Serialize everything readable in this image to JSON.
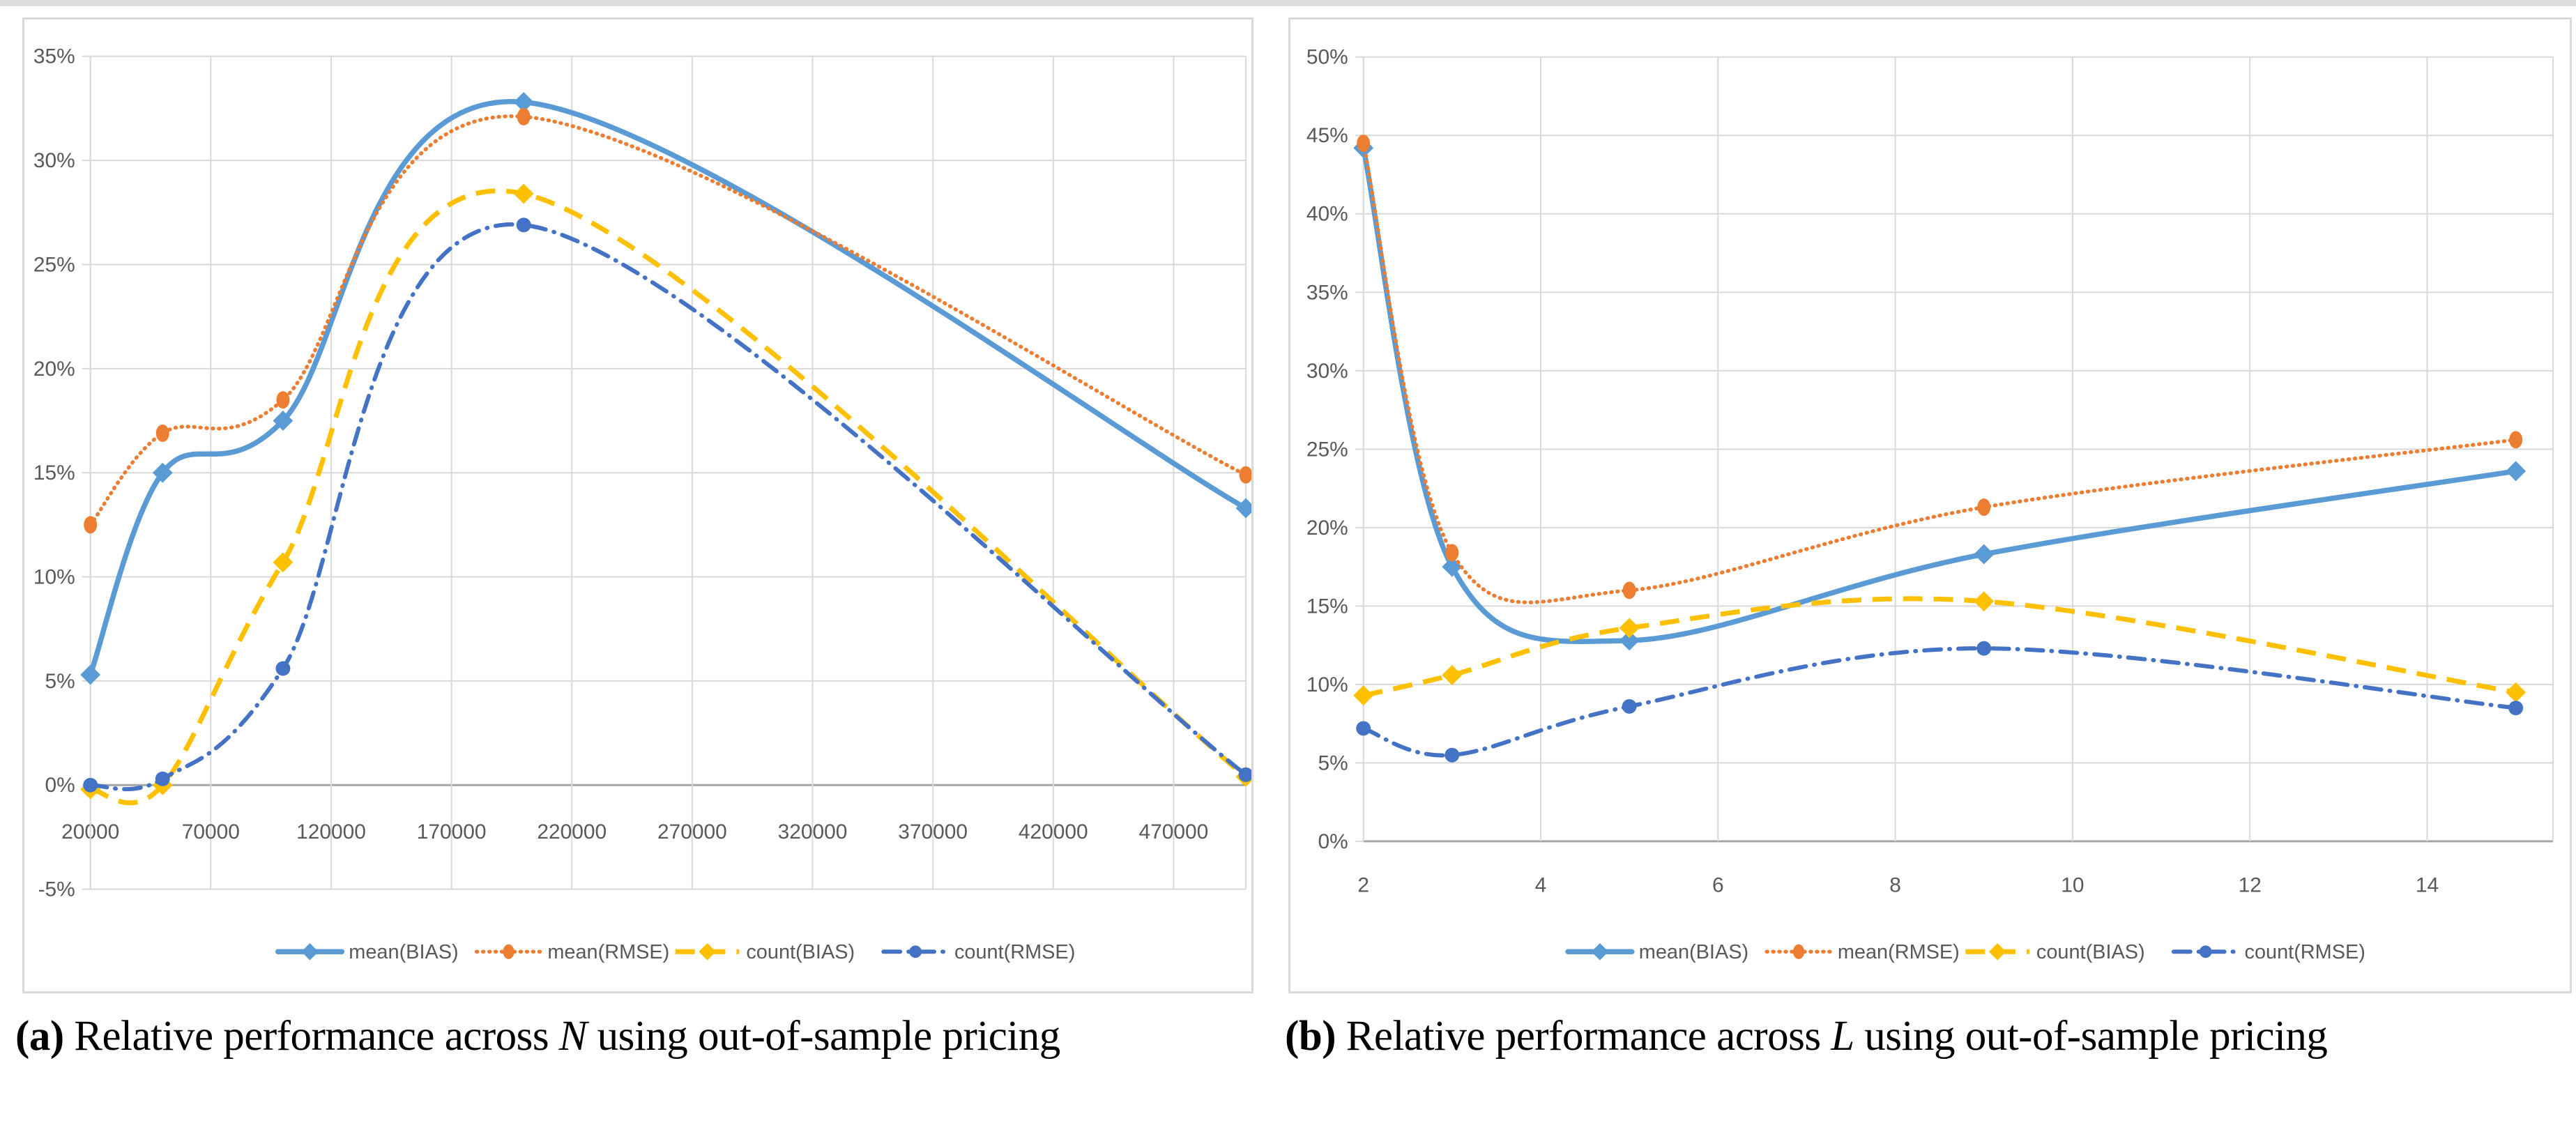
{
  "figure": {
    "captions": [
      {
        "label": "(a)",
        "text_before": "Relative performance across",
        "variable": "N",
        "text_after": "using out-of-sample pricing"
      },
      {
        "label": "(b)",
        "text_before": "Relative performance across",
        "variable": "L",
        "text_after": "using out-of-sample pricing"
      }
    ]
  },
  "colors": {
    "blue": "#5B9BD5",
    "orange": "#ED7D31",
    "gold": "#FFC000",
    "dark_blue": "#4472C4",
    "gridline": "#D9D9D9",
    "axis_line": "#A6A6A6",
    "tick_text": "#595959",
    "panel_border": "#D9D9D9",
    "top_strip": "#DCDCDC"
  },
  "chart_data": [
    {
      "id": "a",
      "type": "line",
      "smooth": true,
      "x": [
        20000,
        50000,
        100000,
        200000,
        500000
      ],
      "xlim": [
        20000,
        500000
      ],
      "ylim": [
        -5,
        35
      ],
      "x_tick_values": [
        20000,
        70000,
        120000,
        170000,
        220000,
        270000,
        320000,
        370000,
        420000,
        470000
      ],
      "x_tick_labels": [
        "20000",
        "70000",
        "120000",
        "170000",
        "220000",
        "270000",
        "320000",
        "370000",
        "420000",
        "470000"
      ],
      "y_tick_values": [
        35,
        30,
        25,
        20,
        15,
        10,
        5,
        0,
        -5
      ],
      "y_tick_labels": [
        "35%",
        "30%",
        "25%",
        "20%",
        "15%",
        "10%",
        "5%",
        "0%",
        "-5%"
      ],
      "axis_cross_y": 0,
      "grid": true,
      "legend_position": "bottom",
      "series": [
        {
          "name": "mean(BIAS)",
          "color_key": "blue",
          "line": "solid",
          "marker": "diamond",
          "values": [
            5.3,
            15.0,
            17.5,
            32.8,
            13.3
          ]
        },
        {
          "name": "mean(RMSE)",
          "color_key": "orange",
          "line": "dotted",
          "marker": "oval",
          "values": [
            12.5,
            16.9,
            18.5,
            32.1,
            14.9
          ]
        },
        {
          "name": "count(BIAS)",
          "color_key": "gold",
          "line": "dashed",
          "marker": "diamond",
          "values": [
            -0.2,
            0.0,
            10.7,
            28.4,
            0.4
          ]
        },
        {
          "name": "count(RMSE)",
          "color_key": "dark_blue",
          "line": "dashdot",
          "marker": "circle",
          "values": [
            0.0,
            0.3,
            5.6,
            26.9,
            0.5
          ]
        }
      ]
    },
    {
      "id": "b",
      "type": "line",
      "smooth": true,
      "x": [
        2,
        3,
        5,
        9,
        15
      ],
      "xlim": [
        2,
        15.42
      ],
      "ylim": [
        0,
        50
      ],
      "x_tick_values": [
        2,
        4,
        6,
        8,
        10,
        12,
        14
      ],
      "x_tick_labels": [
        "2",
        "4",
        "6",
        "8",
        "10",
        "12",
        "14"
      ],
      "y_tick_values": [
        50,
        45,
        40,
        35,
        30,
        25,
        20,
        15,
        10,
        5,
        0
      ],
      "y_tick_labels": [
        "50%",
        "45%",
        "40%",
        "35%",
        "30%",
        "25%",
        "20%",
        "15%",
        "10%",
        "5%",
        "0%"
      ],
      "axis_cross_y": 0,
      "grid": true,
      "legend_position": "bottom",
      "series": [
        {
          "name": "mean(BIAS)",
          "color_key": "blue",
          "line": "solid",
          "marker": "diamond",
          "values": [
            44.2,
            17.5,
            12.8,
            18.3,
            23.6
          ]
        },
        {
          "name": "mean(RMSE)",
          "color_key": "orange",
          "line": "dotted",
          "marker": "oval",
          "values": [
            44.5,
            18.4,
            16.0,
            21.3,
            25.6
          ]
        },
        {
          "name": "count(BIAS)",
          "color_key": "gold",
          "line": "dashed",
          "marker": "diamond",
          "values": [
            9.3,
            10.6,
            13.6,
            15.3,
            9.5
          ]
        },
        {
          "name": "count(RMSE)",
          "color_key": "dark_blue",
          "line": "dashdot",
          "marker": "circle",
          "values": [
            7.2,
            5.5,
            8.6,
            12.3,
            8.5
          ]
        }
      ]
    }
  ]
}
